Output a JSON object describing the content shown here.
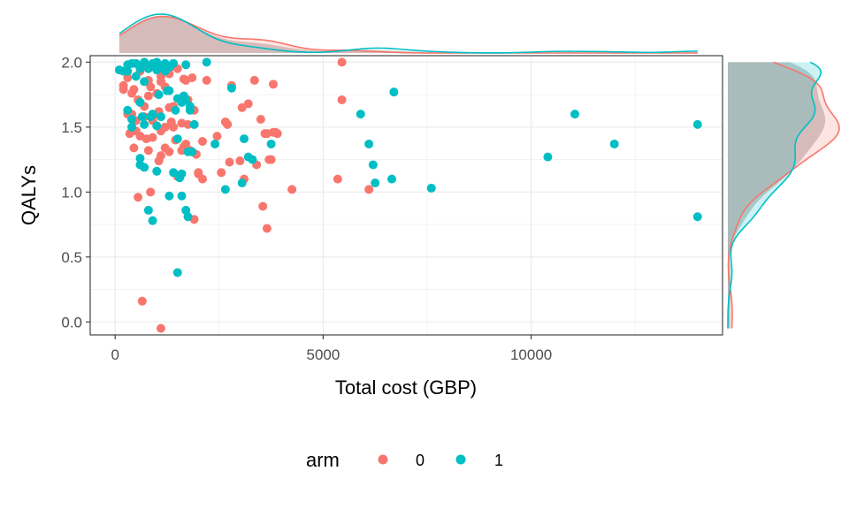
{
  "colors": {
    "arm0": "#F8766D",
    "arm1": "#00BFC4",
    "grid": "#ebebeb",
    "panel_border": "#333333",
    "density_fill": "#cccccc"
  },
  "chart_data": {
    "type": "scatter",
    "marginal": "density",
    "title": "",
    "xlabel": "Total cost (GBP)",
    "ylabel": "QALYs",
    "xlim": [
      -600,
      14600
    ],
    "ylim": [
      -0.1,
      2.05
    ],
    "xticks": [
      0,
      5000,
      10000
    ],
    "yticks": [
      0.0,
      0.5,
      1.0,
      1.5,
      2.0
    ],
    "xtick_labels": [
      "0",
      "5000",
      "10000"
    ],
    "ytick_labels": [
      "0.0",
      "0.5",
      "1.0",
      "1.5",
      "2.0"
    ],
    "grid": true,
    "legend": {
      "title": "arm",
      "position": "bottom"
    },
    "series": [
      {
        "name": "0",
        "x": [
          200,
          300,
          450,
          600,
          700,
          800,
          950,
          1100,
          1300,
          1500,
          1650,
          1850,
          200,
          400,
          550,
          800,
          1000,
          1200,
          1400,
          1650,
          1750,
          300,
          500,
          700,
          900,
          1100,
          1350,
          1600,
          1900,
          2200,
          350,
          600,
          900,
          1200,
          1450,
          1700,
          2000,
          450,
          800,
          1100,
          1500,
          1900,
          400,
          700,
          1050,
          1300,
          1750,
          500,
          900,
          1400,
          1650,
          2000,
          750,
          1050,
          1300,
          1600,
          1800,
          850,
          1100,
          1300,
          1950,
          2100,
          2450,
          2650,
          2800,
          3050,
          3350,
          3200,
          3500,
          3650,
          3850,
          3900,
          3700,
          3000,
          3400,
          3100,
          3800,
          2550,
          2750,
          3650,
          3550,
          4250,
          3750,
          5450,
          5450,
          5350,
          6100,
          2100,
          2700,
          3800,
          550,
          1200,
          1500,
          1900,
          850,
          650,
          1100,
          1700,
          3600
        ],
        "y": [
          1.79,
          1.88,
          1.79,
          1.93,
          1.97,
          1.86,
          1.99,
          1.85,
          1.95,
          1.95,
          1.87,
          1.88,
          1.82,
          1.76,
          1.71,
          1.74,
          1.76,
          1.81,
          1.66,
          1.74,
          1.71,
          1.6,
          1.55,
          1.58,
          1.55,
          1.47,
          1.54,
          1.53,
          1.63,
          1.86,
          1.45,
          1.43,
          1.42,
          1.5,
          1.4,
          1.37,
          1.15,
          1.34,
          1.32,
          1.28,
          1.12,
          1.52,
          1.6,
          1.66,
          1.62,
          1.65,
          1.52,
          1.47,
          1.58,
          1.5,
          1.35,
          1.14,
          1.41,
          1.24,
          1.31,
          1.32,
          1.32,
          1.81,
          1.89,
          1.91,
          1.29,
          1.1,
          1.43,
          1.54,
          1.82,
          1.65,
          1.86,
          1.68,
          1.56,
          1.45,
          1.46,
          1.45,
          1.25,
          1.24,
          1.21,
          1.1,
          1.83,
          1.15,
          1.23,
          0.72,
          0.89,
          1.02,
          1.25,
          2.0,
          1.71,
          1.1,
          1.02,
          1.39,
          1.52,
          1.46,
          0.96,
          1.34,
          1.13,
          0.79,
          1.0,
          0.16,
          -0.05,
          1.86,
          1.45
        ]
      },
      {
        "name": "1",
        "x": [
          100,
          200,
          300,
          400,
          500,
          600,
          700,
          800,
          900,
          1000,
          1100,
          1200,
          1300,
          1400,
          1700,
          2200,
          300,
          500,
          700,
          1000,
          1200,
          1600,
          1800,
          400,
          650,
          900,
          1100,
          1300,
          1500,
          1700,
          1900,
          400,
          600,
          850,
          1050,
          1250,
          1450,
          1650,
          1850,
          300,
          700,
          1000,
          1500,
          1800,
          600,
          1000,
          1400,
          1600,
          1550,
          1750,
          1600,
          1300,
          800,
          600,
          700,
          900,
          1500,
          1700,
          1750,
          2650,
          3050,
          3100,
          3200,
          3750,
          3300,
          2800,
          2400,
          5900,
          6100,
          6200,
          6250,
          6700,
          6650,
          7600,
          11050,
          10400,
          12000,
          14000,
          14000
        ],
        "y": [
          1.94,
          1.93,
          1.98,
          1.99,
          1.99,
          1.95,
          2.0,
          1.95,
          1.99,
          2.0,
          1.96,
          1.99,
          1.96,
          1.99,
          1.98,
          2.0,
          1.93,
          1.89,
          1.85,
          1.94,
          1.93,
          1.69,
          1.66,
          1.56,
          1.58,
          1.6,
          1.58,
          1.78,
          1.72,
          1.71,
          1.52,
          1.5,
          1.69,
          1.58,
          1.75,
          1.78,
          1.63,
          1.74,
          1.31,
          1.63,
          1.52,
          1.51,
          1.41,
          1.63,
          1.21,
          1.16,
          1.15,
          1.14,
          1.11,
          1.31,
          0.97,
          0.97,
          0.86,
          1.26,
          1.19,
          0.78,
          0.38,
          0.86,
          0.81,
          1.02,
          1.07,
          1.41,
          1.27,
          1.37,
          1.25,
          1.8,
          1.37,
          1.6,
          1.37,
          1.21,
          1.07,
          1.77,
          1.1,
          1.03,
          1.6,
          1.27,
          1.37,
          1.52,
          0.81
        ]
      }
    ]
  }
}
